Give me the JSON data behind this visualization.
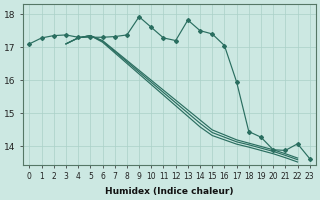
{
  "xlabel": "Humidex (Indice chaleur)",
  "xlim": [
    -0.5,
    23.5
  ],
  "ylim": [
    13.45,
    18.3
  ],
  "yticks": [
    14,
    15,
    16,
    17,
    18
  ],
  "xticks": [
    0,
    1,
    2,
    3,
    4,
    5,
    6,
    7,
    8,
    9,
    10,
    11,
    12,
    13,
    14,
    15,
    16,
    17,
    18,
    19,
    20,
    21,
    22,
    23
  ],
  "background_color": "#cce8e2",
  "grid_color": "#aad0c8",
  "line_color": "#2a6e60",
  "jagged_y": [
    17.1,
    17.28,
    17.35,
    17.37,
    17.3,
    17.3,
    17.3,
    17.32,
    17.37,
    17.92,
    17.6,
    17.28,
    17.2,
    17.82,
    17.5,
    17.4,
    17.05,
    15.95,
    14.45,
    14.28,
    13.9,
    13.88,
    14.08,
    13.63
  ],
  "straight_lines": [
    [
      17.1,
      17.28,
      17.35,
      17.2,
      16.9,
      16.6,
      16.3,
      16.0,
      15.7,
      15.4,
      15.1,
      14.8,
      14.5,
      14.35,
      14.2,
      14.1,
      14.0,
      13.9,
      13.78,
      13.65
    ],
    [
      17.1,
      17.28,
      17.35,
      17.18,
      16.87,
      16.56,
      16.25,
      15.94,
      15.63,
      15.32,
      15.01,
      14.7,
      14.42,
      14.28,
      14.14,
      14.05,
      13.95,
      13.85,
      13.73,
      13.6
    ],
    [
      17.1,
      17.28,
      17.35,
      17.15,
      16.83,
      16.51,
      16.19,
      15.87,
      15.55,
      15.23,
      14.91,
      14.59,
      14.33,
      14.2,
      14.07,
      13.98,
      13.88,
      13.78,
      13.66,
      13.53
    ]
  ],
  "straight_x_start": 3
}
